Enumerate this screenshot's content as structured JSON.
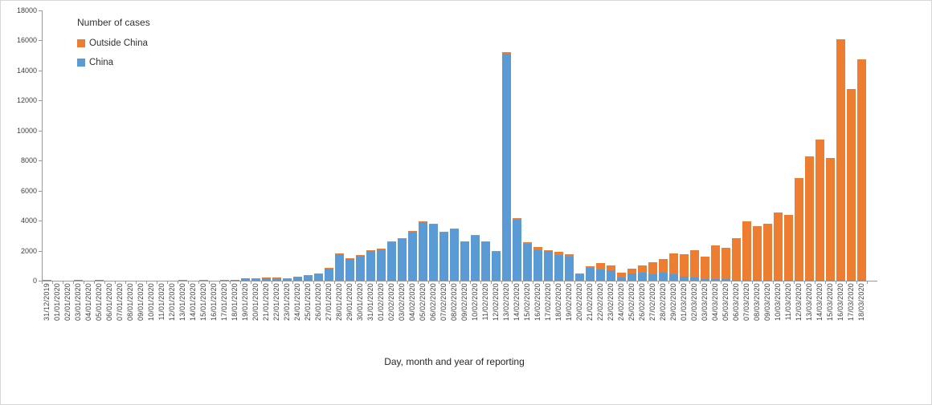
{
  "chart_data": {
    "type": "bar",
    "stacked": true,
    "legend_title": "Number of cases",
    "xlabel": "Day, month and year of reporting",
    "ylabel": "",
    "ylim": [
      0,
      18000
    ],
    "ytick_interval": 2000,
    "y_ticks": [
      "0",
      "2000",
      "4000",
      "6000",
      "8000",
      "10000",
      "12000",
      "14000",
      "16000",
      "18000"
    ],
    "grid": false,
    "legend_position": "top-left",
    "categories": [
      "31/12/2019",
      "01/01/2020",
      "02/01/2020",
      "03/01/2020",
      "04/01/2020",
      "05/01/2020",
      "06/01/2020",
      "07/01/2020",
      "08/01/2020",
      "09/01/2020",
      "10/01/2020",
      "11/01/2020",
      "12/01/2020",
      "13/01/2020",
      "14/01/2020",
      "15/01/2020",
      "16/01/2020",
      "17/01/2020",
      "18/01/2020",
      "19/01/2020",
      "20/01/2020",
      "21/01/2020",
      "22/01/2020",
      "23/01/2020",
      "24/01/2020",
      "25/01/2020",
      "26/01/2020",
      "27/01/2020",
      "28/01/2020",
      "29/01/2020",
      "30/01/2020",
      "31/01/2020",
      "01/02/2020",
      "02/02/2020",
      "03/02/2020",
      "04/02/2020",
      "05/02/2020",
      "06/02/2020",
      "07/02/2020",
      "08/02/2020",
      "09/02/2020",
      "10/02/2020",
      "11/02/2020",
      "12/02/2020",
      "13/02/2020",
      "14/02/2020",
      "15/02/2020",
      "16/02/2020",
      "17/02/2020",
      "18/02/2020",
      "19/02/2020",
      "20/02/2020",
      "21/02/2020",
      "22/02/2020",
      "23/02/2020",
      "24/02/2020",
      "25/02/2020",
      "26/02/2020",
      "27/02/2020",
      "28/02/2020",
      "29/02/2020",
      "01/03/2020",
      "02/03/2020",
      "03/03/2020",
      "04/03/2020",
      "05/03/2020",
      "06/03/2020",
      "07/03/2020",
      "08/03/2020",
      "09/03/2020",
      "10/03/2020",
      "11/03/2020",
      "12/03/2020",
      "13/03/2020",
      "14/03/2020",
      "15/03/2020",
      "16/03/2020",
      "17/03/2020",
      "18/03/2020"
    ],
    "series": [
      {
        "name": "Outside China",
        "color": "#ED7D31",
        "values": [
          0,
          0,
          0,
          0,
          0,
          0,
          0,
          0,
          0,
          0,
          0,
          0,
          0,
          25,
          0,
          25,
          0,
          30,
          0,
          0,
          2,
          5,
          9,
          4,
          8,
          11,
          19,
          16,
          15,
          12,
          13,
          20,
          24,
          26,
          32,
          17,
          39,
          21,
          33,
          35,
          47,
          21,
          31,
          74,
          105,
          110,
          105,
          180,
          60,
          210,
          175,
          90,
          90,
          410,
          350,
          295,
          335,
          530,
          810,
          905,
          1365,
          1500,
          1830,
          1485,
          2215,
          2055,
          2760,
          3900,
          3575,
          3755,
          4505,
          4325,
          6785,
          8225,
          9325,
          8095,
          15985,
          12680,
          14675
        ]
      },
      {
        "name": "China",
        "color": "#5B9BD5",
        "values": [
          27,
          0,
          0,
          17,
          0,
          15,
          0,
          0,
          0,
          0,
          0,
          0,
          0,
          0,
          0,
          0,
          0,
          0,
          55,
          140,
          103,
          170,
          151,
          116,
          202,
          339,
          441,
          784,
          1765,
          1450,
          1627,
          1970,
          2091,
          2574,
          2783,
          3234,
          3881,
          3759,
          3186,
          3395,
          2553,
          2969,
          2559,
          1896,
          15070,
          4070,
          2445,
          2040,
          1980,
          1725,
          1585,
          410,
          845,
          760,
          675,
          240,
          465,
          510,
          425,
          525,
          450,
          260,
          210,
          105,
          110,
          110,
          55,
          55,
          45,
          45,
          30,
          30,
          25,
          15,
          25,
          25,
          30,
          40,
          25
        ]
      }
    ]
  }
}
